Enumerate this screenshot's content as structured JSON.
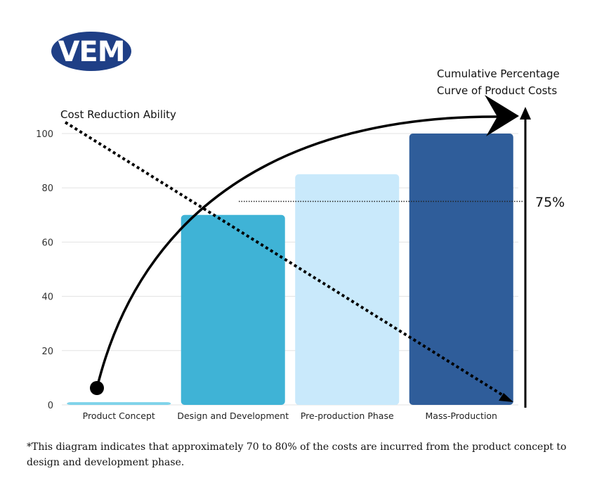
{
  "logo": {
    "text": "VEM",
    "color": "#1f3f86"
  },
  "chart_data": {
    "type": "bar",
    "categories": [
      "Product Concept",
      "Design and Development",
      "Pre-production Phase",
      "Mass-Production"
    ],
    "values": [
      1,
      70,
      85,
      100
    ],
    "colors": [
      "#7fd3ea",
      "#3fb3d6",
      "#c9e9fb",
      "#2f5d9a"
    ],
    "ylim": [
      0,
      100
    ],
    "yticks": [
      0,
      20,
      40,
      60,
      80,
      100
    ],
    "grid": true,
    "threshold": {
      "value": 75,
      "label": "75%"
    },
    "annotations": {
      "cost_reduction": "Cost Reduction Ability",
      "cumulative_line1": "Cumulative Percentage",
      "cumulative_line2": "Curve of Product Costs"
    }
  },
  "footnote": "*This diagram indicates that approximately 70 to 80% of the costs are incurred from the product concept to design and development phase."
}
